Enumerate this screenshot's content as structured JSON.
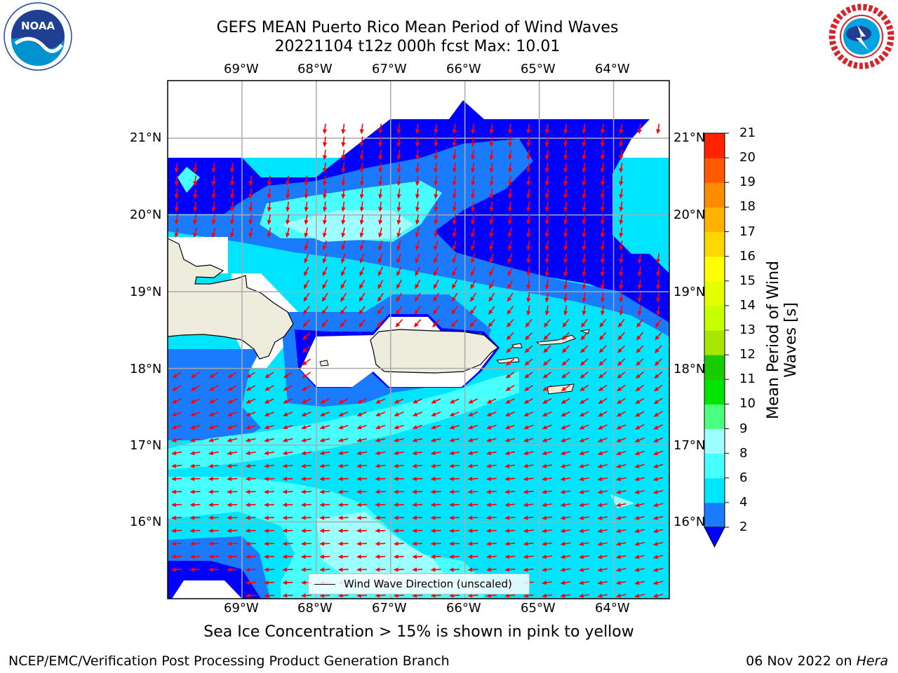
{
  "title": {
    "line1": "GEFS MEAN Puerto Rico Mean Period of Wind Waves",
    "line2": "20221104 t12z 000h fcst   Max: 10.01"
  },
  "subtitle": "Sea Ice Concentration > 15% is shown in pink to yellow",
  "footer": {
    "left": "NCEP/EMC/Verification Post Processing Product Generation Branch",
    "date": "06 Nov 2022 on ",
    "machine": "Hera"
  },
  "logos": {
    "left": "noaa-logo",
    "right": "nws-logo"
  },
  "map": {
    "lon_labels": [
      "69°W",
      "68°W",
      "67°W",
      "66°W",
      "65°W",
      "64°W"
    ],
    "lat_labels": [
      "21°N",
      "20°N",
      "19°N",
      "18°N",
      "17°N",
      "16°N"
    ],
    "lon_range": [
      -70.0,
      -63.25
    ],
    "lat_range": [
      15.0,
      21.75
    ],
    "gridlines": true,
    "legend_label": "Wind Wave Direction (unscaled)",
    "arrow_color": "#ff0000",
    "land_color": "#eeecdc"
  },
  "colorbar": {
    "label": "Mean Period of Wind Waves [s]",
    "ticks": [
      "2",
      "4",
      "6",
      "8",
      "9",
      "10",
      "11",
      "12",
      "13",
      "14",
      "15",
      "16",
      "17",
      "18",
      "19",
      "20",
      "21"
    ],
    "colors": [
      "#0000ff",
      "#1a7bff",
      "#00e5ff",
      "#47ffff",
      "#9dffff",
      "#4bff80",
      "#00e400",
      "#19cc00",
      "#a6e600",
      "#c8ff00",
      "#e4ff00",
      "#ffff00",
      "#ffd700",
      "#ffb300",
      "#ff8c00",
      "#ff5a00",
      "#ff2200",
      "#ff0000"
    ],
    "extend": "min"
  }
}
